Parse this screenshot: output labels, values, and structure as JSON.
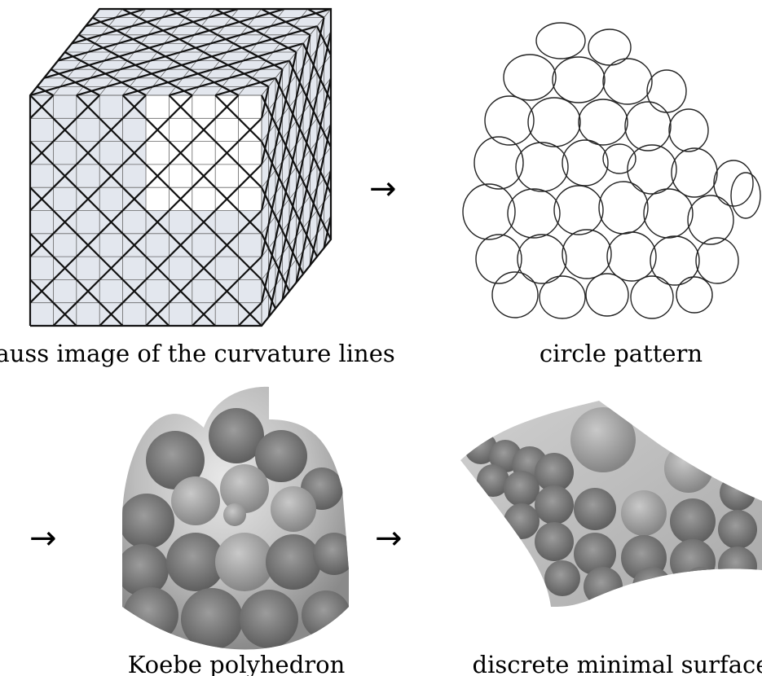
{
  "figure": {
    "arrows": [
      "→",
      "→",
      "→"
    ],
    "panels": [
      {
        "id": "gauss-image",
        "caption": "Gauss image of the curvature lines"
      },
      {
        "id": "circle-pattern",
        "caption": "circle pattern"
      },
      {
        "id": "koebe-polyhedron",
        "caption": "Koebe polyhedron"
      },
      {
        "id": "minimal-surface",
        "caption": "discrete minimal surface"
      }
    ],
    "colors": {
      "cube_shaded": "#e3e7ee",
      "cube_white": "#ffffff",
      "line": "#111111",
      "disk_dark": "#6c6c6c",
      "disk_light": "#9a9a9a",
      "surface_bg": "#c9c9c9"
    }
  }
}
